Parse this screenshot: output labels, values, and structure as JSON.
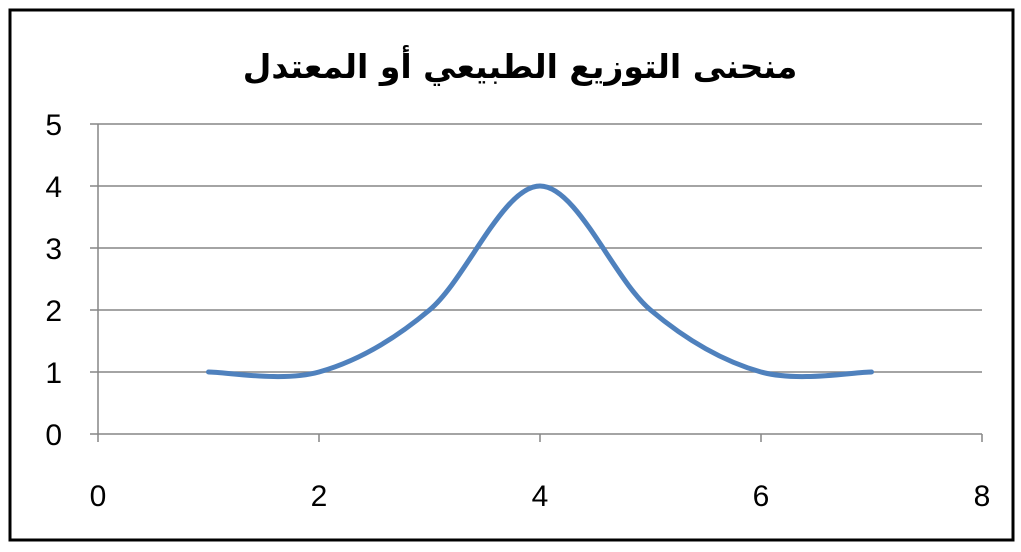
{
  "chart_data": {
    "type": "scatter",
    "title": "منحنى التوزيع الطبيعي أو المعتدل",
    "xlabel": "",
    "ylabel": "",
    "xlim": [
      0,
      8
    ],
    "ylim": [
      0,
      5
    ],
    "x_ticks": [
      "0",
      "2",
      "4",
      "6",
      "8"
    ],
    "y_ticks": [
      "0",
      "1",
      "2",
      "3",
      "4",
      "5"
    ],
    "grid": "horizontal",
    "legend": "none",
    "smooth_line": true,
    "line_color": "#4F81BD",
    "series": [
      {
        "x": [
          1,
          2,
          3,
          4,
          5,
          6,
          7
        ],
        "y": [
          1,
          1,
          2,
          4,
          2,
          1,
          1
        ]
      }
    ]
  }
}
